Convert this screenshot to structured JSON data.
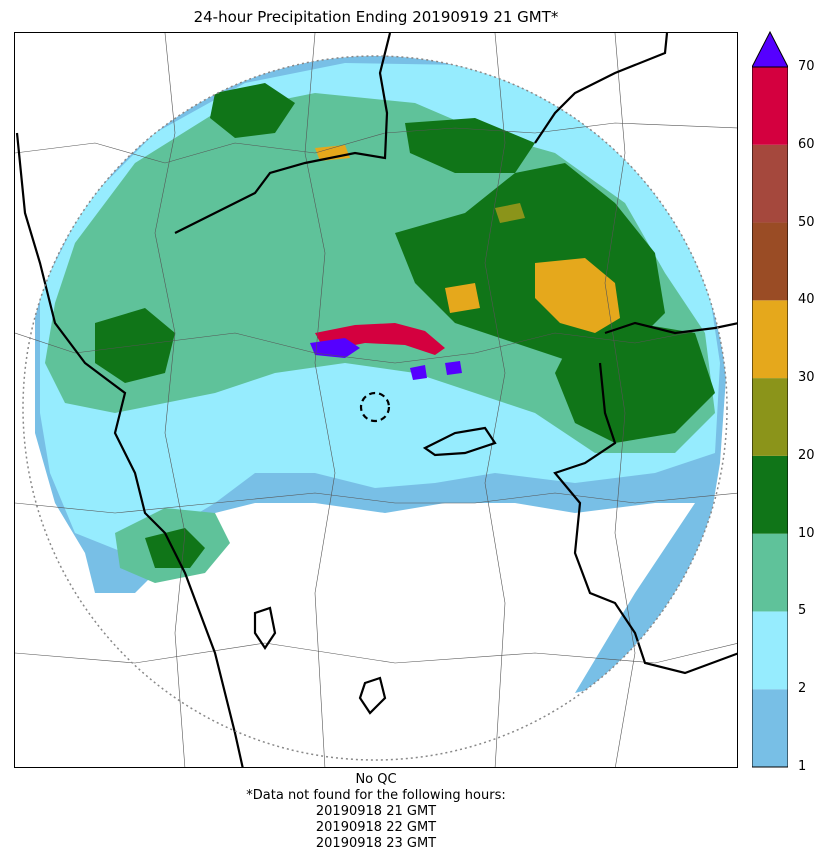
{
  "title": "24-hour Precipitation Ending 20190919 21 GMT*",
  "colorbar": {
    "ticks": [
      "1",
      "2",
      "5",
      "10",
      "20",
      "30",
      "40",
      "50",
      "60",
      "70"
    ],
    "colors": [
      "#78bfe6",
      "#96ecfe",
      "#5fc29a",
      "#107518",
      "#8b941a",
      "#e5a81c",
      "#9a4c25",
      "#a5483d",
      "#d4003f"
    ],
    "extend_color": "#5500ff"
  },
  "map": {
    "radar_range_ring": "dotted-gray-circle",
    "radar_site_marker": "dashed-black-circle",
    "boundaries": [
      "country-borders-thick-black",
      "province-borders-thin-gray"
    ]
  },
  "footer": {
    "qc": "No QC",
    "missing_note": "*Data not found for the following hours:",
    "missing_hours": [
      "20190918 21 GMT",
      "20190918 22 GMT",
      "20190918 23 GMT"
    ]
  }
}
